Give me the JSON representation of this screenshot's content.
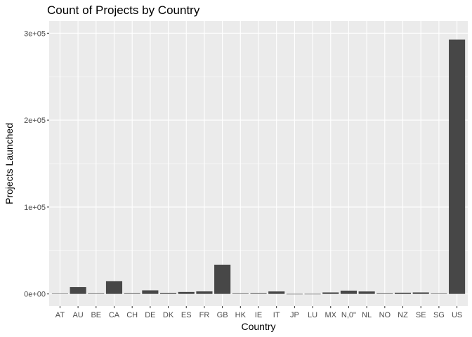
{
  "colors": {
    "panel_background": "#ebebeb",
    "grid_major": "#ffffff",
    "bar_fill": "#474747",
    "tick_text": "#4d4d4d"
  },
  "chart_data": {
    "type": "bar",
    "title": "Count of Projects by Country",
    "xlabel": "Country",
    "ylabel": "Projects Launched",
    "categories": [
      "AT",
      "AU",
      "BE",
      "CA",
      "CH",
      "DE",
      "DK",
      "ES",
      "FR",
      "GB",
      "HK",
      "IE",
      "IT",
      "JP",
      "LU",
      "MX",
      "N,0\"",
      "NL",
      "NO",
      "NZ",
      "SE",
      "SG",
      "US"
    ],
    "values": [
      485,
      7839,
      617,
      14756,
      761,
      4171,
      1113,
      2276,
      2939,
      33672,
      618,
      811,
      2878,
      40,
      62,
      1752,
      3797,
      2868,
      708,
      1447,
      1757,
      555,
      292627
    ],
    "ylim": [
      -14000,
      314000
    ],
    "y_ticks": [
      0,
      100000,
      200000,
      300000
    ],
    "y_tick_labels": [
      "0e+00",
      "1e+05",
      "2e+05",
      "3e+05"
    ],
    "grid": true,
    "legend": "none"
  }
}
